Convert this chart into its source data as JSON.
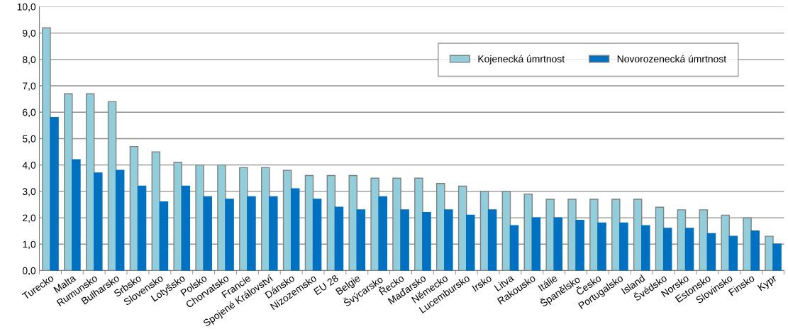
{
  "chart_data": {
    "type": "bar",
    "categories": [
      "Turecko",
      "Malta",
      "Rumunsko",
      "Bulharsko",
      "Srbsko",
      "Slovensko",
      "Lotyšsko",
      "Polsko",
      "Chorvatsko",
      "Francie",
      "Spojené Království",
      "Dánsko",
      "Nizozemsko",
      "EU 28",
      "Belgie",
      "Švýcarsko",
      "Řecko",
      "Maďarsko",
      "Německo",
      "Lucembursko",
      "Irsko",
      "Litva",
      "Rakousko",
      "Itálie",
      "Španělsko",
      "Česko",
      "Portugalsko",
      "Island",
      "Švédsko",
      "Norsko",
      "Estonsko",
      "Slovinsko",
      "Finsko",
      "Kypr"
    ],
    "series": [
      {
        "name": "Kojenecká úmrtnost",
        "color": "#92cddc",
        "values": [
          9.2,
          6.7,
          6.7,
          6.4,
          4.7,
          4.5,
          4.1,
          4.0,
          4.0,
          3.9,
          3.9,
          3.8,
          3.6,
          3.6,
          3.6,
          3.5,
          3.5,
          3.5,
          3.3,
          3.2,
          3.0,
          3.0,
          2.9,
          2.7,
          2.7,
          2.7,
          2.7,
          2.7,
          2.4,
          2.3,
          2.3,
          2.1,
          2.0,
          1.3
        ]
      },
      {
        "name": "Novorozenecká úmrtnost",
        "color": "#0070c0",
        "values": [
          5.8,
          4.2,
          3.7,
          3.8,
          3.2,
          2.6,
          3.2,
          2.8,
          2.7,
          2.8,
          2.8,
          3.1,
          2.7,
          2.4,
          2.3,
          2.8,
          2.3,
          2.2,
          2.3,
          2.1,
          2.3,
          1.7,
          2.0,
          2.0,
          1.9,
          1.8,
          1.8,
          1.7,
          1.6,
          1.6,
          1.4,
          1.3,
          1.5,
          1.0
        ]
      }
    ],
    "ylim": [
      0,
      10
    ],
    "yticks": [
      {
        "value": 0,
        "label": "0,0"
      },
      {
        "value": 1,
        "label": "1,0"
      },
      {
        "value": 2,
        "label": "2,0"
      },
      {
        "value": 3,
        "label": "3,0"
      },
      {
        "value": 4,
        "label": "4,0"
      },
      {
        "value": 5,
        "label": "5,0"
      },
      {
        "value": 6,
        "label": "6,0"
      },
      {
        "value": 7,
        "label": "7,0"
      },
      {
        "value": 8,
        "label": "8,0"
      },
      {
        "value": 9,
        "label": "9,0"
      },
      {
        "value": 10,
        "label": "10,0"
      }
    ],
    "grid": "y",
    "legend": "top right"
  }
}
